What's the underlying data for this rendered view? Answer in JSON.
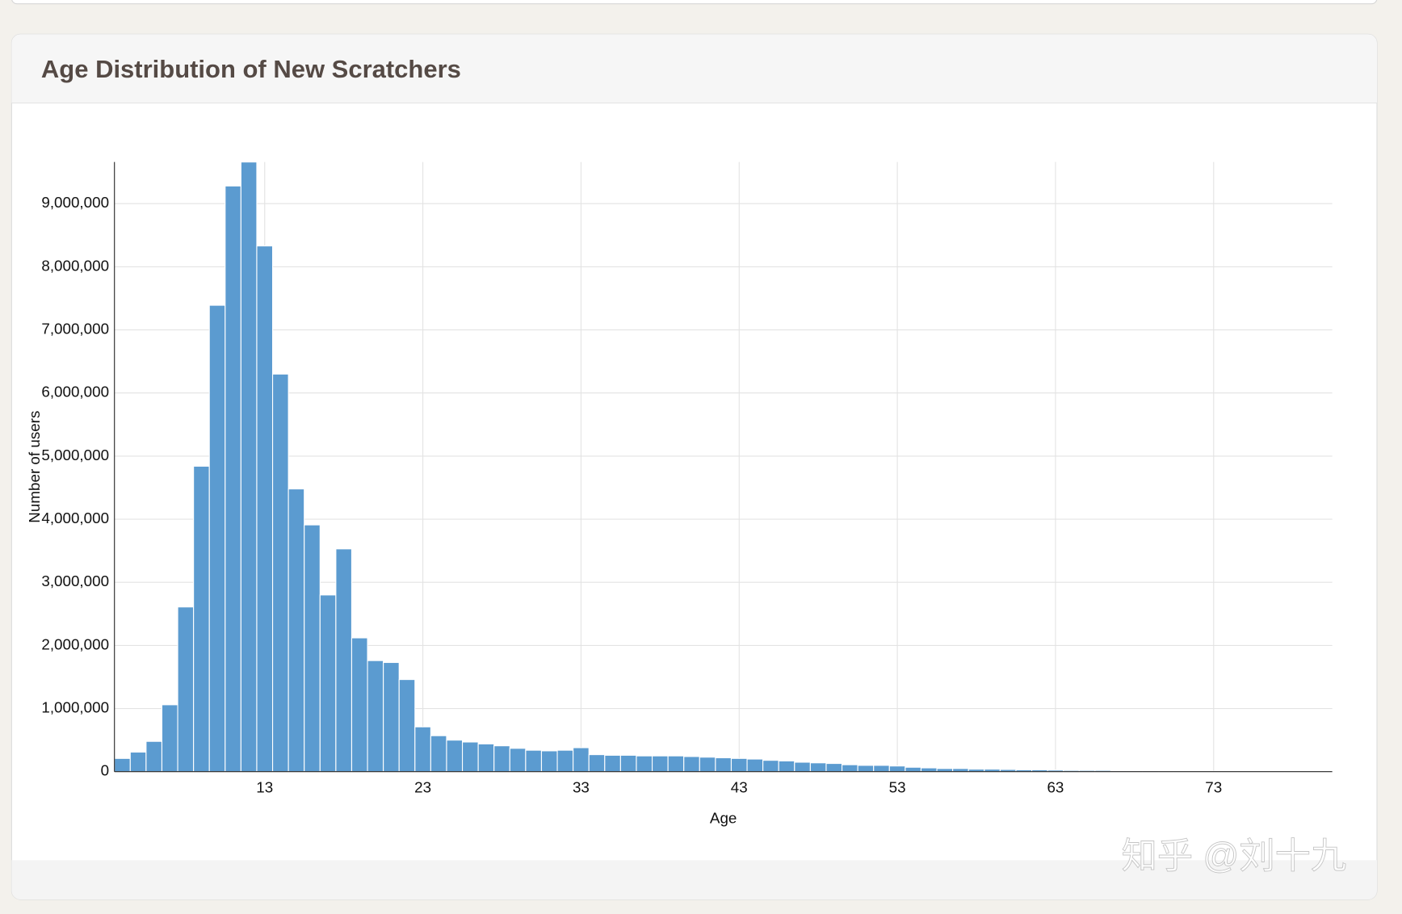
{
  "chart_data": {
    "type": "histogram",
    "title": "Age Distribution of New Scratchers",
    "x_label": "Age",
    "y_label": "Number of users",
    "color": "#5b9bd0",
    "grid": true,
    "bins": [
      3.5,
      4.5,
      5.5,
      6.5,
      7.5,
      8.5,
      9.5,
      10.5,
      11.5,
      12.5,
      13.5,
      14.5,
      15.5,
      16.5,
      17.5,
      18.5,
      19.5,
      20.5,
      21.5,
      22.5,
      23.5,
      24.5,
      25.5,
      26.5,
      27.5,
      28.5,
      29.5,
      30.5,
      31.5,
      32.5,
      33.5,
      34.5,
      35.5,
      36.5,
      37.5,
      38.5,
      39.5,
      40.5,
      41.5,
      42.5,
      43.5,
      44.5,
      45.5,
      46.5,
      47.5,
      48.5,
      49.5,
      50.5,
      51.5,
      52.5,
      53.5,
      54.5,
      55.5,
      56.5,
      57.5,
      58.5,
      59.5,
      60.5,
      61.5,
      62.5,
      63.5,
      64.5,
      65.5,
      66.5,
      67.5,
      68.5,
      69.5,
      70.5,
      71.5,
      72.5,
      73.5,
      74.5,
      75.5,
      76.5,
      77.5,
      78.5,
      79.5,
      80.5
    ],
    "values": [
      210000,
      310000,
      480000,
      1060000,
      2610000,
      4840000,
      7390000,
      9280000,
      9660000,
      8330000,
      6300000,
      4480000,
      3910000,
      2800000,
      3530000,
      2120000,
      1760000,
      1730000,
      1460000,
      710000,
      570000,
      500000,
      470000,
      440000,
      410000,
      370000,
      340000,
      330000,
      340000,
      380000,
      270000,
      260000,
      260000,
      250000,
      250000,
      250000,
      240000,
      230000,
      220000,
      210000,
      200000,
      180000,
      170000,
      150000,
      140000,
      130000,
      110000,
      100000,
      100000,
      90000,
      70000,
      60000,
      50000,
      50000,
      40000,
      40000,
      35000,
      30000,
      30000,
      25000,
      20000,
      20000,
      20000,
      15000,
      15000,
      15000,
      10000,
      10000,
      10000,
      10000,
      10000,
      10000,
      10000,
      10000,
      10000,
      10000,
      10000
    ],
    "xlim": [
      3.5,
      80.5
    ],
    "xticks": [
      13,
      23,
      33,
      43,
      53,
      63,
      73
    ],
    "ylim": [
      0,
      9660000
    ],
    "yticks": [
      0,
      {
        "value": 1000000,
        "label": "1,000,000"
      },
      {
        "value": 2000000,
        "label": "2,000,000"
      },
      {
        "value": 3000000,
        "label": "3,000,000"
      },
      {
        "value": 4000000,
        "label": "4,000,000"
      },
      {
        "value": 5000000,
        "label": "5,000,000"
      },
      {
        "value": 6000000,
        "label": "6,000,000"
      },
      {
        "value": 7000000,
        "label": "7,000,000"
      },
      {
        "value": 8000000,
        "label": "8,000,000"
      },
      {
        "value": 9000000,
        "label": "9,000,000"
      }
    ]
  },
  "watermark": "知乎 @刘十九"
}
